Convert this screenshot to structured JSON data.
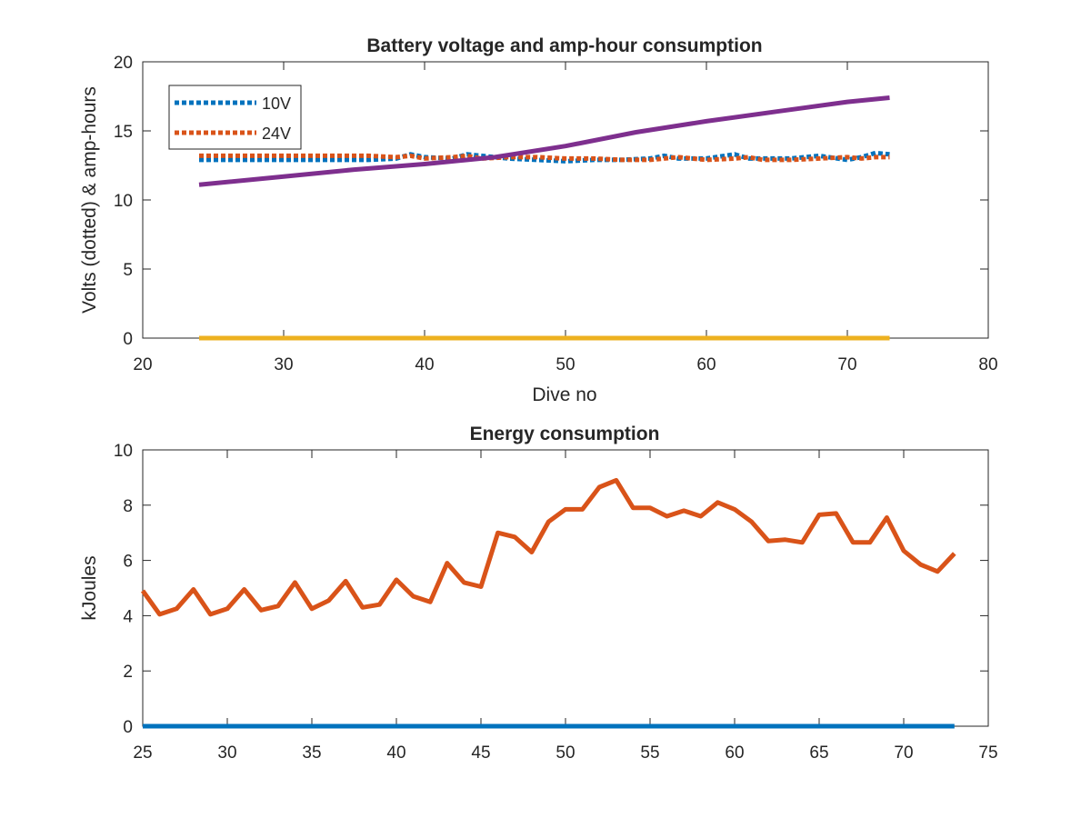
{
  "colors": {
    "v10": "#0072BD",
    "v24": "#D95319",
    "amp_hours": "#7E2F8E",
    "zero_line_top": "#EDB120",
    "energy": "#D95319",
    "zero_line_bottom": "#0072BD",
    "axes": "#262626"
  },
  "chart_data": [
    {
      "type": "line",
      "title": "Battery voltage and amp-hour consumption",
      "xlabel": "Dive no",
      "ylabel": "Volts (dotted) & amp-hours",
      "xlim": [
        20,
        80
      ],
      "ylim": [
        0,
        20
      ],
      "xticks": [
        "20",
        "30",
        "40",
        "50",
        "60",
        "70",
        "80"
      ],
      "yticks": [
        "0",
        "5",
        "10",
        "15",
        "20"
      ],
      "grid": false,
      "legend_position": "top-left",
      "legend": [
        {
          "label": "10V",
          "style": "dotted",
          "color_key": "v10"
        },
        {
          "label": "24V",
          "style": "dotted",
          "color_key": "v24"
        }
      ],
      "series": [
        {
          "name": "10V",
          "style": "dotted",
          "color_key": "v10",
          "x": [
            24,
            27,
            30,
            33,
            36,
            38,
            39,
            40,
            42,
            43,
            44,
            46,
            48,
            50,
            52,
            54,
            56,
            57,
            58,
            60,
            62,
            63,
            64,
            66,
            68,
            70,
            71,
            72,
            73
          ],
          "y": [
            12.9,
            12.9,
            12.9,
            12.9,
            12.9,
            13.0,
            13.3,
            13.1,
            13.0,
            13.3,
            13.2,
            13.0,
            12.9,
            12.8,
            12.9,
            12.9,
            13.0,
            13.2,
            13.0,
            13.0,
            13.3,
            13.0,
            13.0,
            13.0,
            13.2,
            12.9,
            13.1,
            13.4,
            13.3
          ]
        },
        {
          "name": "24V",
          "style": "dotted",
          "color_key": "v24",
          "x": [
            24,
            27,
            30,
            33,
            36,
            38,
            39,
            40,
            42,
            43,
            44,
            46,
            48,
            50,
            52,
            54,
            56,
            57,
            58,
            60,
            62,
            63,
            64,
            66,
            68,
            70,
            71,
            72,
            73
          ],
          "y": [
            13.2,
            13.2,
            13.2,
            13.2,
            13.2,
            13.1,
            13.2,
            13.0,
            13.1,
            13.2,
            13.0,
            13.1,
            13.1,
            13.0,
            13.0,
            12.9,
            12.9,
            13.0,
            13.1,
            12.9,
            13.0,
            13.1,
            12.9,
            12.9,
            13.0,
            13.1,
            13.0,
            13.1,
            13.1
          ]
        },
        {
          "style": "solid",
          "color_key": "amp_hours",
          "x": [
            24,
            30,
            35,
            40,
            45,
            50,
            55,
            60,
            65,
            70,
            73
          ],
          "y": [
            11.1,
            11.7,
            12.2,
            12.6,
            13.1,
            13.9,
            14.9,
            15.7,
            16.4,
            17.1,
            17.4
          ]
        },
        {
          "style": "solid",
          "color_key": "zero_line_top",
          "x": [
            24,
            73
          ],
          "y": [
            0,
            0
          ]
        }
      ]
    },
    {
      "type": "line",
      "title": "Energy consumption",
      "xlabel": "",
      "ylabel": "kJoules",
      "xlim": [
        25,
        75
      ],
      "ylim": [
        0,
        10
      ],
      "xticks": [
        "25",
        "30",
        "35",
        "40",
        "45",
        "50",
        "55",
        "60",
        "65",
        "70",
        "75"
      ],
      "yticks": [
        "0",
        "2",
        "4",
        "6",
        "8",
        "10"
      ],
      "grid": false,
      "series": [
        {
          "style": "solid",
          "color_key": "energy",
          "x": [
            25,
            26,
            27,
            28,
            29,
            30,
            31,
            32,
            33,
            34,
            35,
            36,
            37,
            38,
            39,
            40,
            41,
            42,
            43,
            44,
            45,
            46,
            47,
            48,
            49,
            50,
            51,
            52,
            53,
            54,
            55,
            56,
            57,
            58,
            59,
            60,
            61,
            62,
            63,
            64,
            65,
            66,
            67,
            68,
            69,
            70,
            71,
            72,
            73
          ],
          "y": [
            4.9,
            4.05,
            4.25,
            4.95,
            4.05,
            4.25,
            4.95,
            4.2,
            4.35,
            5.2,
            4.25,
            4.55,
            5.25,
            4.3,
            4.4,
            5.3,
            4.7,
            4.5,
            5.9,
            5.2,
            5.05,
            7.0,
            6.85,
            6.3,
            7.4,
            7.85,
            7.85,
            8.65,
            8.9,
            7.9,
            7.9,
            7.6,
            7.8,
            7.6,
            8.1,
            7.85,
            7.4,
            6.7,
            6.75,
            6.65,
            7.65,
            7.7,
            6.65,
            6.65,
            7.55,
            6.35,
            5.85,
            5.6,
            6.25
          ]
        },
        {
          "style": "solid",
          "color_key": "zero_line_bottom",
          "x": [
            25,
            73
          ],
          "y": [
            0,
            0
          ]
        }
      ]
    }
  ]
}
